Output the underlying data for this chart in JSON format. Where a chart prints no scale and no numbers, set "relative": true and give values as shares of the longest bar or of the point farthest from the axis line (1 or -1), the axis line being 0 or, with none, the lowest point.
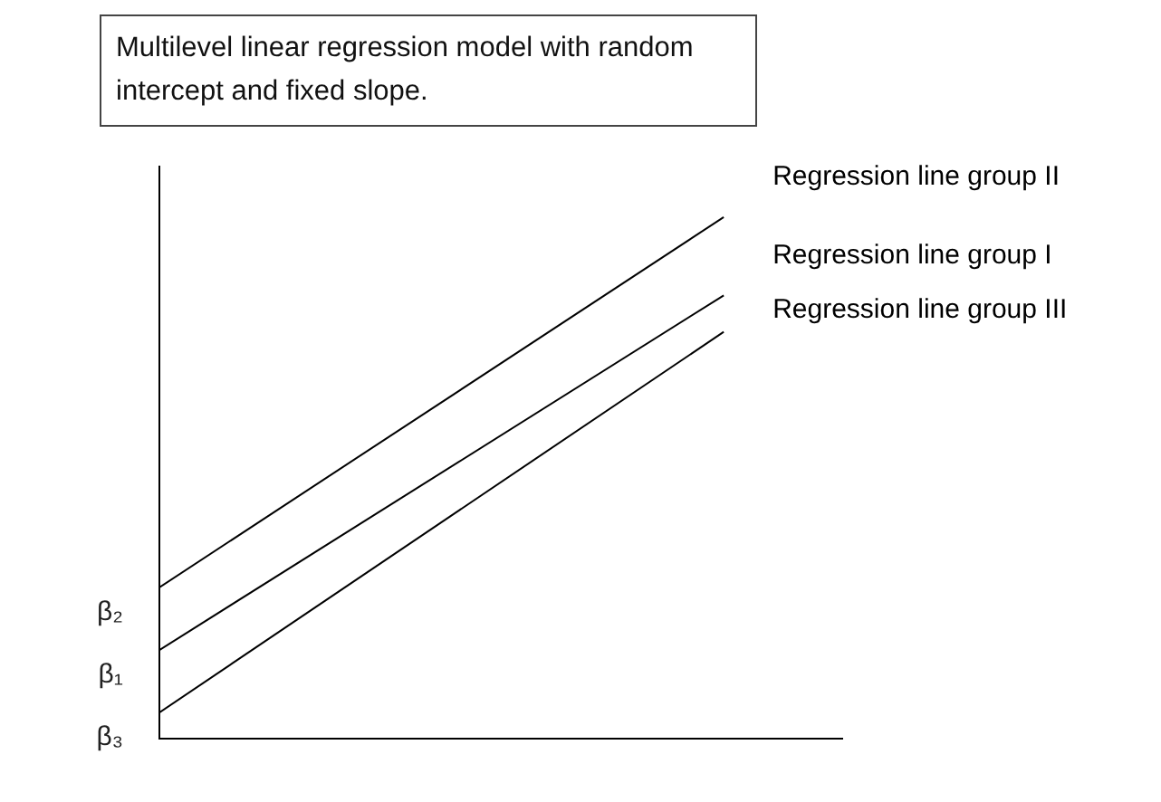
{
  "chart_data": {
    "type": "line",
    "title": "Multilevel linear regression model with random intercept and fixed slope.",
    "relative": true,
    "categories": [
      null,
      null
    ],
    "legend": false,
    "marker": "none",
    "series": [
      {
        "name": "Regression line group II",
        "color": "#000000",
        "values": [
          0.29,
          1.0
        ]
      },
      {
        "name": "Regression line group I",
        "color": "#000000",
        "values": [
          0.17,
          0.85
        ]
      },
      {
        "name": "Regression line group III",
        "color": "#000000",
        "values": [
          0.05,
          0.78
        ]
      }
    ],
    "annotations": [
      "β₂",
      "β₁",
      "β₃"
    ]
  }
}
